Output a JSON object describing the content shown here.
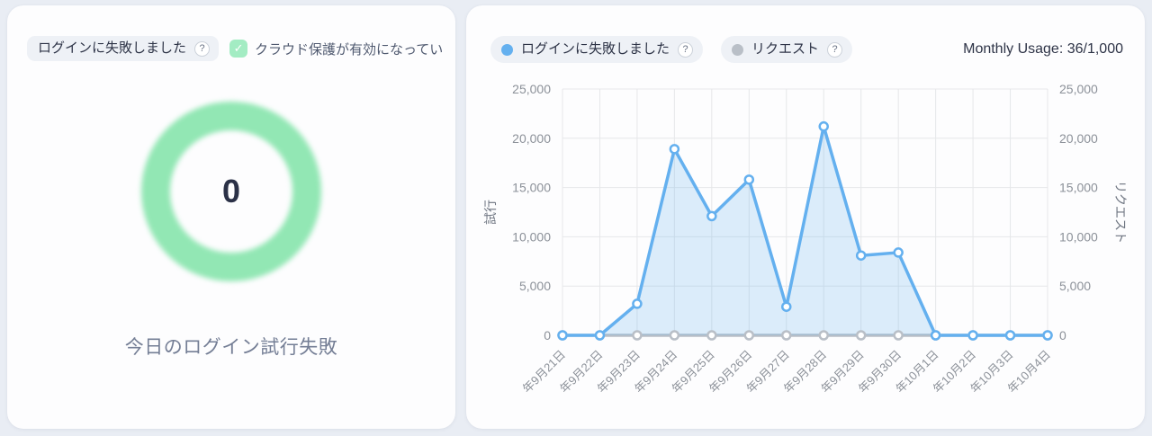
{
  "left_card": {
    "badge": {
      "label": "ログインに失敗しました",
      "help": "?"
    },
    "cloud_protect": {
      "label": "クラウド保護が有効になってい",
      "check_icon": "✓"
    },
    "donut": {
      "value": "0",
      "ring_color": "#92e7b4"
    },
    "caption": "今日のログイン試行失敗"
  },
  "right_card": {
    "legend": [
      {
        "label": "ログインに失敗しました",
        "color": "#64b0ef",
        "help": "?"
      },
      {
        "label": "リクエスト",
        "color": "#b9bfc7",
        "help": "?"
      }
    ],
    "usage": "Monthly Usage: 36/1,000"
  },
  "chart_data": {
    "type": "area",
    "x": [
      "年9月21日",
      "年9月22日",
      "年9月23日",
      "年9月24日",
      "年9月25日",
      "年9月26日",
      "年9月27日",
      "年9月28日",
      "年9月29日",
      "年9月30日",
      "年10月1日",
      "年10月2日",
      "年10月3日",
      "年10月4日"
    ],
    "series": [
      {
        "name": "ログインに失敗しました",
        "color": "#64b0ef",
        "fill": "rgba(100,176,239,0.22)",
        "values": [
          0,
          0,
          3200,
          18900,
          12100,
          15800,
          2900,
          21200,
          8100,
          8400,
          0,
          0,
          0,
          0
        ]
      },
      {
        "name": "リクエスト",
        "color": "#b9bfc7",
        "fill": "none",
        "values": [
          0,
          0,
          0,
          0,
          0,
          0,
          0,
          0,
          0,
          0,
          0,
          0,
          0,
          0
        ]
      }
    ],
    "title": "",
    "xlabel": "",
    "ylabel_left": "試行",
    "ylabel_right": "リクエスト",
    "ylim": [
      0,
      25000
    ],
    "ytick_step": 5000,
    "grid": true,
    "legend_position": "top"
  }
}
